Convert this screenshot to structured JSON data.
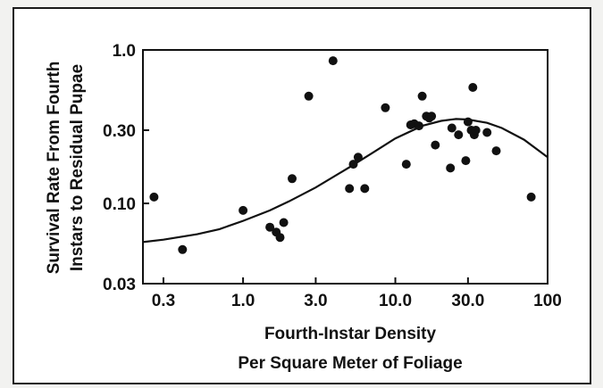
{
  "chart_data": {
    "type": "scatter",
    "title": "",
    "xlabel": [
      "Fourth-Instar Density",
      "Per Square Meter of Foliage"
    ],
    "ylabel": [
      "Survival Rate From Fourth",
      "Instars to Residual Pupae"
    ],
    "xscale": "log",
    "yscale": "log",
    "xlim": [
      0.22,
      100
    ],
    "ylim": [
      0.03,
      1.0
    ],
    "xticks": [
      0.3,
      1.0,
      3.0,
      10.0,
      30.0,
      100
    ],
    "xtick_labels": [
      "0.3",
      "1.0",
      "3.0",
      "10.0",
      "30.0",
      "100"
    ],
    "yticks": [
      0.03,
      0.1,
      0.3,
      1.0
    ],
    "ytick_labels": [
      "0.03",
      "0.10",
      "0.30",
      "1.0"
    ],
    "grid": false,
    "colors": {
      "points": "#111111",
      "curve": "#111111",
      "frame": "#1a1a1a"
    },
    "series": [
      {
        "kind": "points",
        "x": [
          0.26,
          0.4,
          1.0,
          1.5,
          1.65,
          1.75,
          1.85,
          2.1,
          2.7,
          3.9,
          5.0,
          5.3,
          5.7,
          6.3,
          8.6,
          11.8,
          12.6,
          13.3,
          14.3,
          15.0,
          16.0,
          16.7,
          17.3,
          18.3,
          23.0,
          23.5,
          26.0,
          29.0,
          30.0,
          31.5,
          32.3,
          33.0,
          33.8,
          40.0,
          46.0,
          78.0
        ],
        "y": [
          0.11,
          0.05,
          0.09,
          0.07,
          0.065,
          0.06,
          0.075,
          0.145,
          0.5,
          0.85,
          0.125,
          0.18,
          0.2,
          0.125,
          0.42,
          0.18,
          0.325,
          0.33,
          0.32,
          0.5,
          0.37,
          0.36,
          0.37,
          0.24,
          0.17,
          0.31,
          0.28,
          0.19,
          0.34,
          0.3,
          0.57,
          0.28,
          0.3,
          0.29,
          0.22,
          0.11
        ]
      },
      {
        "kind": "fitted-curve",
        "x": [
          0.22,
          0.3,
          0.5,
          0.7,
          1.0,
          1.5,
          2.0,
          3.0,
          5.0,
          7.0,
          10.0,
          15.0,
          20.0,
          25.0,
          30.0,
          40.0,
          50.0,
          70.0,
          100
        ],
        "y": [
          0.056,
          0.058,
          0.063,
          0.068,
          0.077,
          0.09,
          0.103,
          0.127,
          0.172,
          0.212,
          0.265,
          0.32,
          0.345,
          0.355,
          0.352,
          0.335,
          0.31,
          0.26,
          0.2
        ]
      }
    ]
  }
}
